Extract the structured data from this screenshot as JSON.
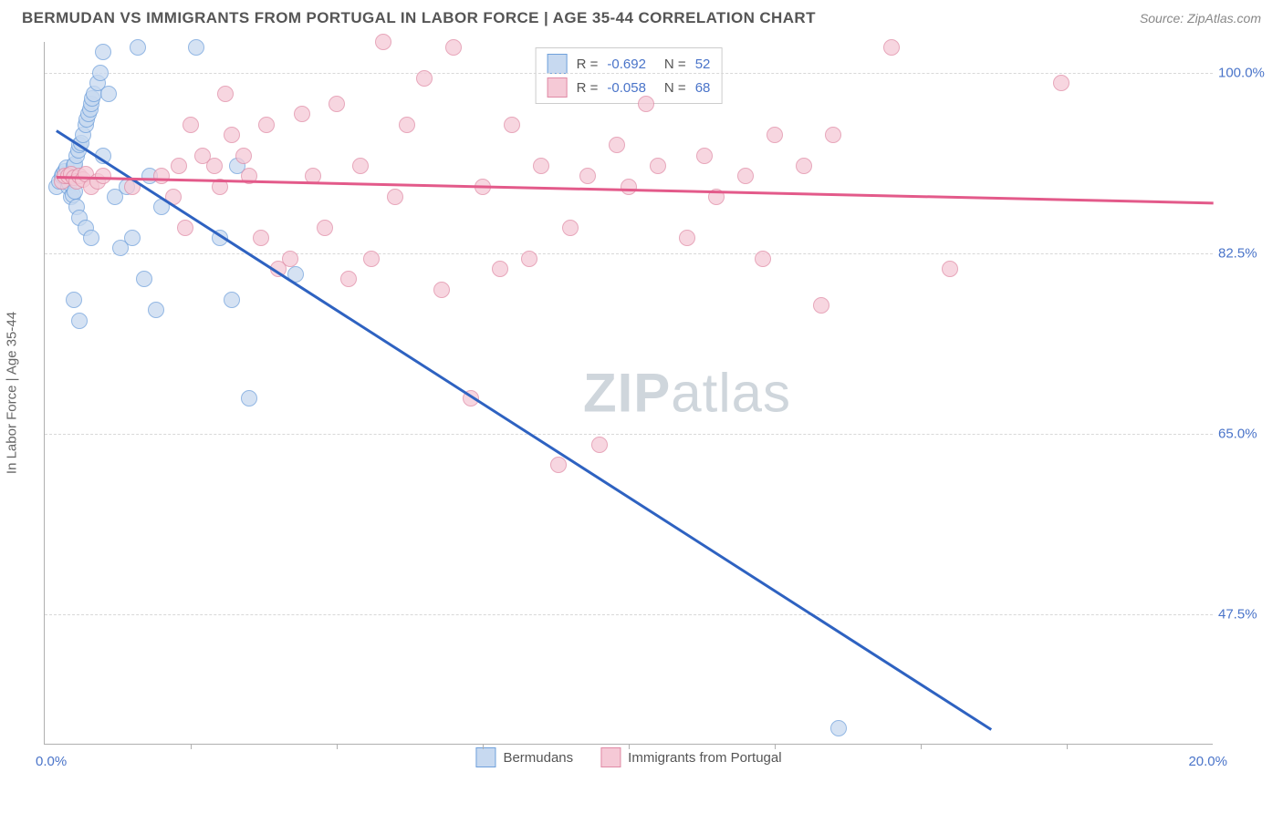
{
  "header": {
    "title": "BERMUDAN VS IMMIGRANTS FROM PORTUGAL IN LABOR FORCE | AGE 35-44 CORRELATION CHART",
    "source": "Source: ZipAtlas.com"
  },
  "chart": {
    "type": "scatter",
    "ylabel": "In Labor Force | Age 35-44",
    "xlim": [
      0,
      20
    ],
    "ylim": [
      35,
      103
    ],
    "xticks": [
      2.5,
      5,
      7.5,
      10,
      12.5,
      15,
      17.5
    ],
    "xlim_labels": {
      "min": "0.0%",
      "max": "20.0%"
    },
    "yticks": [
      {
        "v": 47.5,
        "label": "47.5%"
      },
      {
        "v": 65.0,
        "label": "65.0%"
      },
      {
        "v": 82.5,
        "label": "82.5%"
      },
      {
        "v": 100.0,
        "label": "100.0%"
      }
    ],
    "background_color": "#ffffff",
    "grid_color": "#d8d8d8",
    "axis_color": "#b0b0b0",
    "label_color": "#4a74c9",
    "marker_size": 16,
    "series": [
      {
        "name": "Bermudans",
        "fill": "#c7d9f0",
        "stroke": "#6fa0db",
        "line_color": "#2e62c1",
        "r": "-0.692",
        "n": "52",
        "trend": {
          "x1": 0.2,
          "y1": 94.5,
          "x2": 16.2,
          "y2": 36.5
        },
        "points": [
          [
            0.2,
            89
          ],
          [
            0.25,
            89.5
          ],
          [
            0.3,
            90
          ],
          [
            0.32,
            90.2
          ],
          [
            0.35,
            90.5
          ],
          [
            0.38,
            90.8
          ],
          [
            0.4,
            89
          ],
          [
            0.42,
            89.3
          ],
          [
            0.5,
            91
          ],
          [
            0.52,
            91.2
          ],
          [
            0.55,
            92
          ],
          [
            0.58,
            92.5
          ],
          [
            0.6,
            93
          ],
          [
            0.62,
            93.2
          ],
          [
            0.65,
            94
          ],
          [
            0.7,
            95
          ],
          [
            0.72,
            95.5
          ],
          [
            0.75,
            96
          ],
          [
            0.78,
            96.5
          ],
          [
            0.8,
            97
          ],
          [
            0.82,
            97.5
          ],
          [
            0.85,
            98
          ],
          [
            0.9,
            99
          ],
          [
            0.95,
            100
          ],
          [
            0.5,
            78
          ],
          [
            0.6,
            76
          ],
          [
            0.45,
            88
          ],
          [
            0.48,
            88.2
          ],
          [
            0.52,
            88.5
          ],
          [
            0.55,
            87
          ],
          [
            0.6,
            86
          ],
          [
            0.7,
            85
          ],
          [
            0.8,
            84
          ],
          [
            1.0,
            92
          ],
          [
            1.0,
            102
          ],
          [
            1.1,
            98
          ],
          [
            1.2,
            88
          ],
          [
            1.3,
            83
          ],
          [
            1.4,
            89
          ],
          [
            1.5,
            84
          ],
          [
            1.6,
            102.5
          ],
          [
            1.7,
            80
          ],
          [
            1.8,
            90
          ],
          [
            1.9,
            77
          ],
          [
            2.0,
            87
          ],
          [
            2.6,
            102.5
          ],
          [
            3.0,
            84
          ],
          [
            3.2,
            78
          ],
          [
            3.3,
            91
          ],
          [
            3.5,
            68.5
          ],
          [
            4.3,
            80.5
          ],
          [
            13.6,
            36.5
          ]
        ]
      },
      {
        "name": "Immigrants from Portugal",
        "fill": "#f5c9d6",
        "stroke": "#e08aa5",
        "line_color": "#e35a8a",
        "r": "-0.058",
        "n": "68",
        "trend": {
          "x1": 0.2,
          "y1": 90,
          "x2": 20,
          "y2": 87.5
        },
        "points": [
          [
            0.3,
            89.5
          ],
          [
            0.35,
            90
          ],
          [
            0.4,
            90
          ],
          [
            0.45,
            90.2
          ],
          [
            0.5,
            89.8
          ],
          [
            0.55,
            89.5
          ],
          [
            0.6,
            90
          ],
          [
            0.65,
            89.7
          ],
          [
            0.7,
            90.2
          ],
          [
            0.8,
            89
          ],
          [
            0.9,
            89.5
          ],
          [
            1.0,
            90
          ],
          [
            1.5,
            89
          ],
          [
            2.0,
            90
          ],
          [
            2.2,
            88
          ],
          [
            2.3,
            91
          ],
          [
            2.4,
            85
          ],
          [
            2.5,
            95
          ],
          [
            2.7,
            92
          ],
          [
            2.9,
            91
          ],
          [
            3.0,
            89
          ],
          [
            3.1,
            98
          ],
          [
            3.2,
            94
          ],
          [
            3.4,
            92
          ],
          [
            3.5,
            90
          ],
          [
            3.7,
            84
          ],
          [
            3.8,
            95
          ],
          [
            4.0,
            81
          ],
          [
            4.2,
            82
          ],
          [
            4.4,
            96
          ],
          [
            4.6,
            90
          ],
          [
            4.8,
            85
          ],
          [
            5.0,
            97
          ],
          [
            5.2,
            80
          ],
          [
            5.4,
            91
          ],
          [
            5.6,
            82
          ],
          [
            5.8,
            103
          ],
          [
            6.0,
            88
          ],
          [
            6.2,
            95
          ],
          [
            6.5,
            99.5
          ],
          [
            6.8,
            79
          ],
          [
            7.0,
            102.5
          ],
          [
            7.3,
            68.5
          ],
          [
            7.5,
            89
          ],
          [
            7.8,
            81
          ],
          [
            8.0,
            95
          ],
          [
            8.3,
            82
          ],
          [
            8.5,
            91
          ],
          [
            8.8,
            62
          ],
          [
            9.0,
            85
          ],
          [
            9.3,
            90
          ],
          [
            9.5,
            64
          ],
          [
            9.8,
            93
          ],
          [
            10.0,
            89
          ],
          [
            10.3,
            97
          ],
          [
            10.5,
            91
          ],
          [
            11.0,
            84
          ],
          [
            11.3,
            92
          ],
          [
            11.5,
            88
          ],
          [
            12.0,
            90
          ],
          [
            12.3,
            82
          ],
          [
            12.5,
            94
          ],
          [
            13.0,
            91
          ],
          [
            13.3,
            77.5
          ],
          [
            13.5,
            94
          ],
          [
            14.5,
            102.5
          ],
          [
            15.5,
            81
          ],
          [
            17.4,
            99
          ]
        ]
      }
    ],
    "legend_bottom": [
      {
        "label": "Bermudans",
        "fill": "#c7d9f0",
        "stroke": "#6fa0db"
      },
      {
        "label": "Immigrants from Portugal",
        "fill": "#f5c9d6",
        "stroke": "#e08aa5"
      }
    ],
    "watermark": {
      "zip": "ZIP",
      "atlas": "atlas"
    }
  }
}
